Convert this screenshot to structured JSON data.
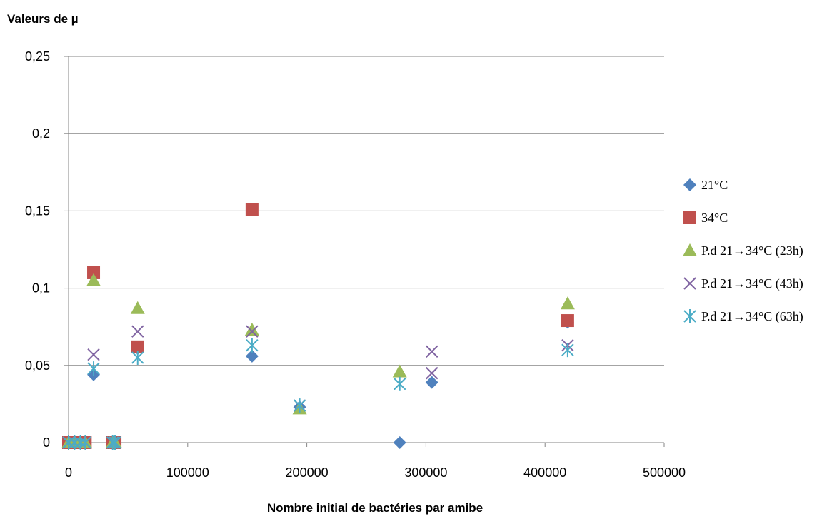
{
  "chart_data": {
    "type": "scatter",
    "title": "Valeurs de µ",
    "xlabel": "Nombre initial de bactéries par amibe",
    "ylabel": "",
    "xlim": [
      0,
      500000
    ],
    "ylim": [
      0,
      0.25
    ],
    "x_ticks": [
      "0",
      "100000",
      "200000",
      "300000",
      "400000",
      "500000"
    ],
    "y_ticks": [
      "0",
      "0,05",
      "0,1",
      "0,15",
      "0,2",
      "0,25"
    ],
    "grid": "horizontal",
    "legend_position": "right",
    "series": [
      {
        "name": "21°C",
        "marker": "diamond",
        "color": "#4F81BD",
        "points": [
          [
            0,
            0
          ],
          [
            5000,
            0
          ],
          [
            10000,
            0
          ],
          [
            14000,
            0
          ],
          [
            21000,
            0.044
          ],
          [
            37000,
            0
          ],
          [
            39000,
            0
          ],
          [
            58000,
            0.061
          ],
          [
            154000,
            0.056
          ],
          [
            194000,
            0.023
          ],
          [
            278000,
            0
          ],
          [
            305000,
            0.039
          ],
          [
            419000,
            0.078
          ]
        ]
      },
      {
        "name": "34°C",
        "marker": "square",
        "color": "#C0504D",
        "points": [
          [
            0,
            0
          ],
          [
            5000,
            0
          ],
          [
            10000,
            0
          ],
          [
            14000,
            0
          ],
          [
            21000,
            0.11
          ],
          [
            37000,
            0
          ],
          [
            39000,
            0
          ],
          [
            58000,
            0.062
          ],
          [
            154000,
            0.151
          ],
          [
            419000,
            0.079
          ]
        ]
      },
      {
        "name": "P.d 21→34°C (23h)",
        "marker": "triangle",
        "color": "#9BBB59",
        "points": [
          [
            0,
            0
          ],
          [
            5000,
            0
          ],
          [
            10000,
            0
          ],
          [
            14000,
            0
          ],
          [
            21000,
            0.105
          ],
          [
            37000,
            0
          ],
          [
            39000,
            0
          ],
          [
            58000,
            0.087
          ],
          [
            154000,
            0.073
          ],
          [
            194000,
            0.022
          ],
          [
            278000,
            0.046
          ],
          [
            419000,
            0.09
          ]
        ]
      },
      {
        "name": "P.d 21→34°C (43h)",
        "marker": "x",
        "color": "#8064A2",
        "points": [
          [
            0,
            0
          ],
          [
            5000,
            0
          ],
          [
            10000,
            0
          ],
          [
            14000,
            0
          ],
          [
            21000,
            0.057
          ],
          [
            37000,
            0
          ],
          [
            39000,
            0
          ],
          [
            58000,
            0.072
          ],
          [
            154000,
            0.072
          ],
          [
            194000,
            0.024
          ],
          [
            305000,
            0.059
          ],
          [
            305000,
            0.045
          ],
          [
            419000,
            0.063
          ]
        ]
      },
      {
        "name": "P.d 21→34°C (63h)",
        "marker": "star",
        "color": "#4BACC6",
        "points": [
          [
            0,
            0
          ],
          [
            5000,
            0
          ],
          [
            10000,
            0
          ],
          [
            14000,
            0
          ],
          [
            21000,
            0.048
          ],
          [
            37000,
            0
          ],
          [
            39000,
            0
          ],
          [
            58000,
            0.055
          ],
          [
            154000,
            0.063
          ],
          [
            194000,
            0.024
          ],
          [
            278000,
            0.038
          ],
          [
            419000,
            0.06
          ]
        ]
      }
    ]
  }
}
